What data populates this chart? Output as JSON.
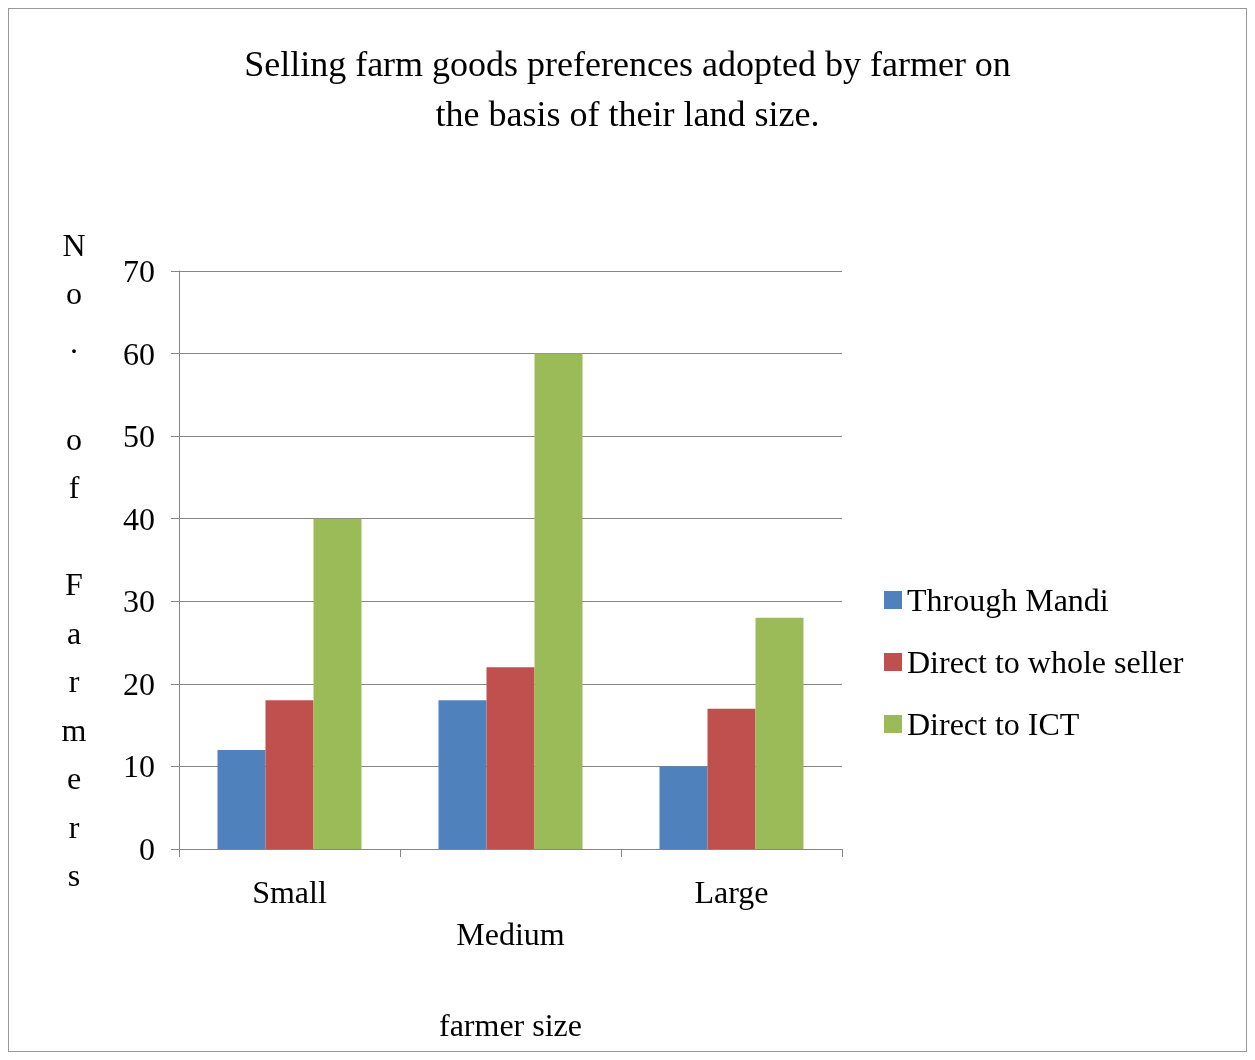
{
  "chart_data": {
    "type": "bar",
    "title": "Selling farm goods preferences adopted by farmer on\nthe basis of their land size.",
    "xlabel": "farmer size",
    "ylabel": "No. of Farmers",
    "categories": [
      "Small",
      "Medium",
      "Large"
    ],
    "series": [
      {
        "name": "Through Mandi",
        "color": "#4f81bd",
        "values": [
          12,
          18,
          10
        ]
      },
      {
        "name": "Direct to whole seller",
        "color": "#c0504d",
        "values": [
          18,
          22,
          17
        ]
      },
      {
        "name": "Direct to ICT",
        "color": "#9bbb59",
        "values": [
          40,
          60,
          28
        ]
      }
    ],
    "ylim": [
      0,
      70
    ],
    "yticks": [
      0,
      10,
      20,
      30,
      40,
      50,
      60,
      70
    ],
    "grid": "y",
    "legend": "right"
  }
}
